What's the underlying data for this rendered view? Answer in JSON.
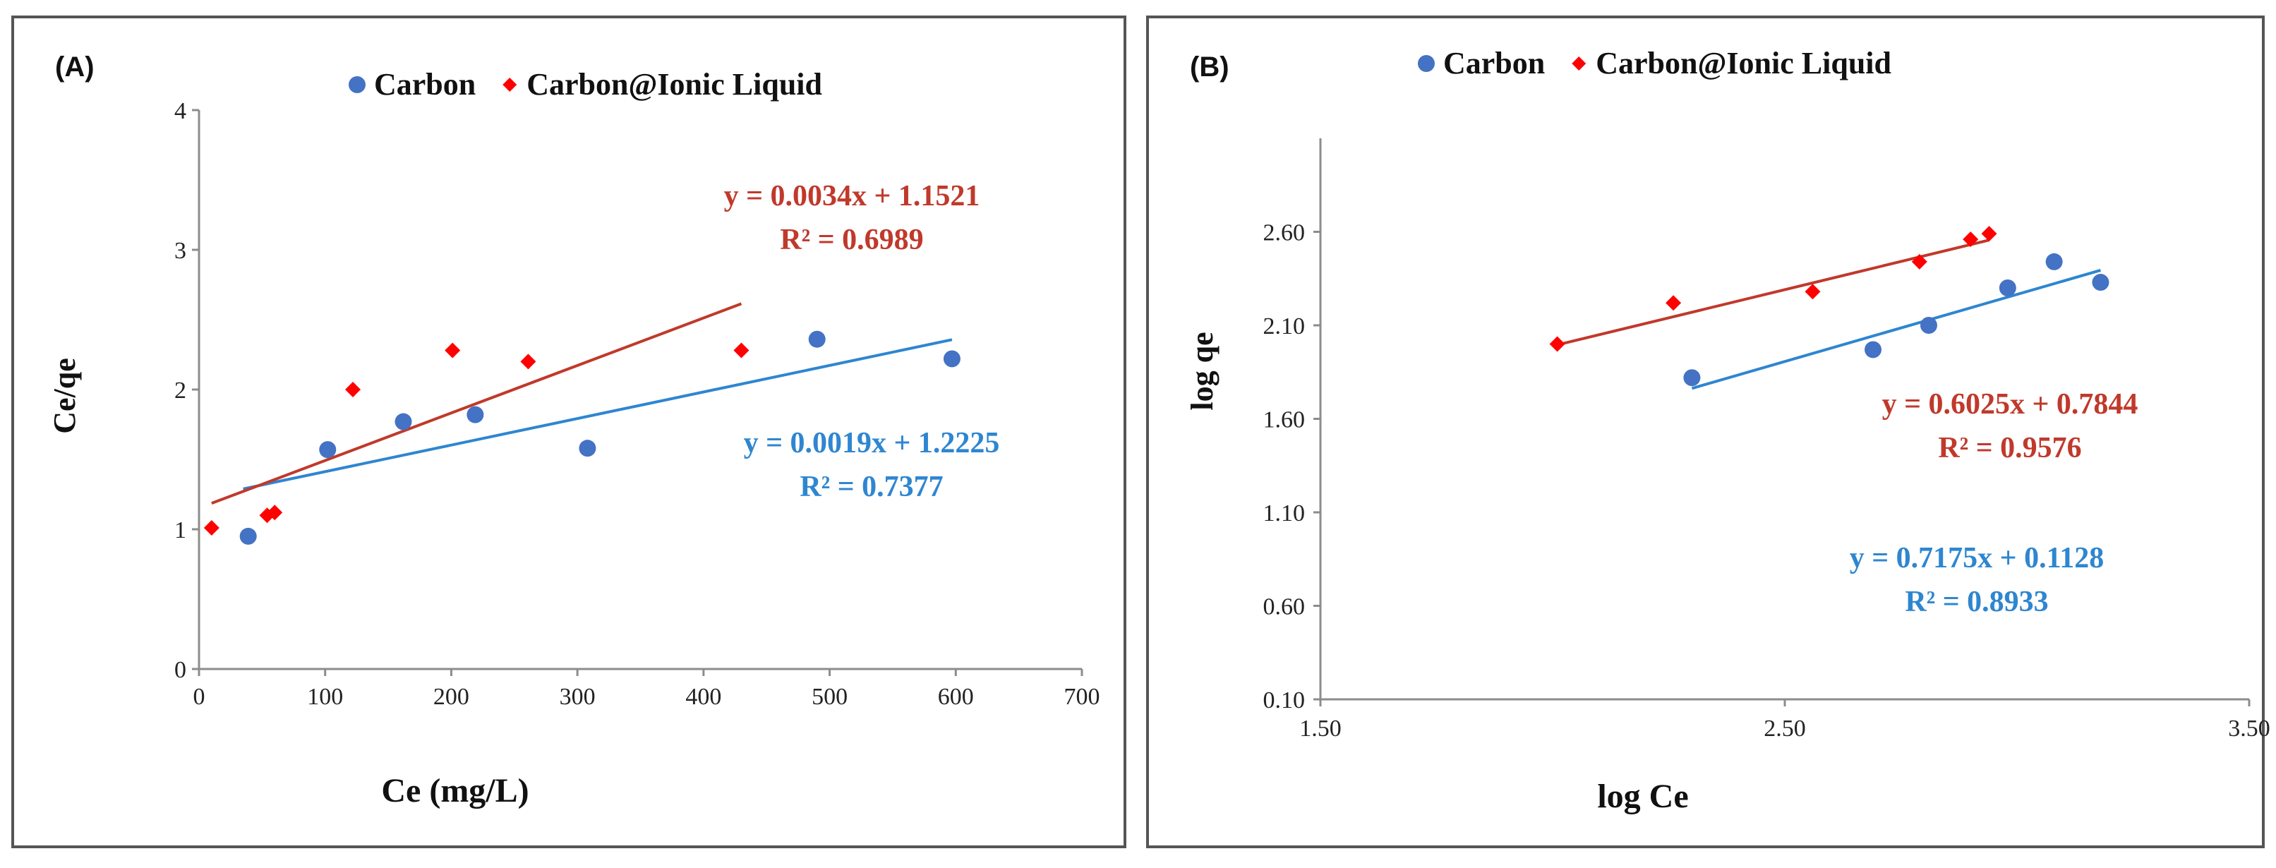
{
  "chart_data": [
    {
      "type": "scatter",
      "panel_label": "(A)",
      "title": "",
      "xlabel": "Ce (mg/L)",
      "ylabel": "Ce/qe",
      "xlim": [
        0,
        700
      ],
      "ylim": [
        0,
        4
      ],
      "xticks": [
        0,
        100,
        200,
        300,
        400,
        500,
        600,
        700
      ],
      "yticks": [
        0,
        1,
        2,
        3,
        4
      ],
      "xtick_labels": [
        "0",
        "100",
        "200",
        "300",
        "400",
        "500",
        "600",
        "700"
      ],
      "ytick_labels": [
        "0",
        "1",
        "2",
        "3",
        "4"
      ],
      "grid": false,
      "legend_position": "top",
      "series": [
        {
          "name": "Carbon",
          "marker": "circle",
          "color": "#4472C4",
          "x": [
            39,
            102,
            162,
            219,
            308,
            490,
            597
          ],
          "y": [
            0.95,
            1.57,
            1.77,
            1.82,
            1.58,
            2.36,
            2.22
          ],
          "trendline": {
            "slope": 0.0019,
            "intercept": 1.2225,
            "x_range": [
              35,
              597
            ],
            "color": "#2E86D0"
          },
          "equation": "y = 0.0019x + 1.2225",
          "r_squared": "R² = 0.7377",
          "label_color": "#2E86D0"
        },
        {
          "name": "Carbon@Ionic Liquid",
          "marker": "diamond",
          "color": "#FF0000",
          "x": [
            10,
            54,
            60,
            122,
            201,
            261,
            430
          ],
          "y": [
            1.01,
            1.1,
            1.12,
            2.0,
            2.28,
            2.2,
            2.28
          ],
          "trendline": {
            "slope": 0.0034,
            "intercept": 1.1521,
            "x_range": [
              10,
              430
            ],
            "color": "#C0392B"
          },
          "equation": "y = 0.0034x + 1.1521",
          "r_squared": "R² = 0.6989",
          "label_color": "#C0392B"
        }
      ]
    },
    {
      "type": "scatter",
      "panel_label": "(B)",
      "title": "",
      "xlabel": "log Ce",
      "ylabel": "log qe",
      "xlim": [
        1.5,
        3.5
      ],
      "ylim": [
        0.1,
        3.1
      ],
      "xticks": [
        1.5,
        2.5,
        3.5
      ],
      "yticks": [
        0.1,
        0.6,
        1.1,
        1.6,
        2.1,
        2.6
      ],
      "xtick_labels": [
        "1.50",
        "2.50",
        "3.50"
      ],
      "ytick_labels": [
        "0.10",
        "0.60",
        "1.10",
        "1.60",
        "2.10",
        "2.60"
      ],
      "grid": false,
      "legend_position": "top",
      "series": [
        {
          "name": "Carbon",
          "marker": "circle",
          "color": "#4472C4",
          "x": [
            2.3,
            2.69,
            2.81,
            2.98,
            3.08,
            3.18
          ],
          "y": [
            1.82,
            1.97,
            2.1,
            2.3,
            2.44,
            2.33
          ],
          "trendline": {
            "slope": 0.7175,
            "intercept": 0.1128,
            "x_range": [
              2.3,
              3.18
            ],
            "color": "#2E86D0"
          },
          "equation": "y = 0.7175x + 0.1128",
          "r_squared": "R² = 0.8933",
          "label_color": "#2E86D0"
        },
        {
          "name": "Carbon@Ionic Liquid",
          "marker": "diamond",
          "color": "#FF0000",
          "x": [
            2.01,
            2.26,
            2.56,
            2.79,
            2.9,
            2.94
          ],
          "y": [
            2.0,
            2.22,
            2.28,
            2.44,
            2.56,
            2.59
          ],
          "trendline": {
            "slope": 0.6025,
            "intercept": 0.7844,
            "x_range": [
              2.01,
              2.94
            ],
            "color": "#C0392B"
          },
          "equation": "y = 0.6025x + 0.7844",
          "r_squared": "R² = 0.9576",
          "label_color": "#C0392B"
        }
      ]
    }
  ]
}
